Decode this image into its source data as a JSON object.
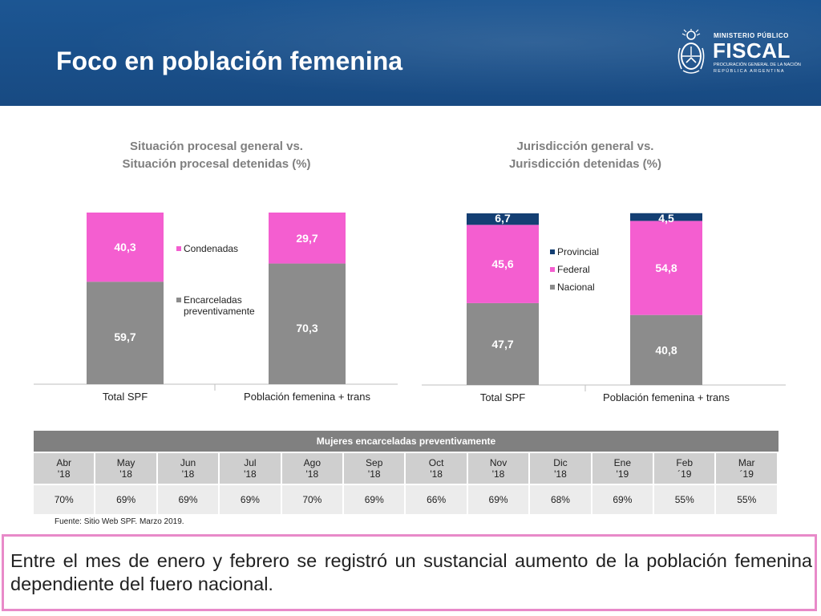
{
  "header": {
    "title": "Foco en población femenina",
    "logo": {
      "line1": "MINISTERIO PÚBLICO",
      "line2": "FISCAL",
      "line3": "PROCURACIÓN GENERAL DE LA NACIÓN",
      "line4": "REPÚBLICA ARGENTINA"
    },
    "colors": {
      "bg": "#1c5693",
      "text": "#ffffff"
    }
  },
  "chart_data": [
    {
      "type": "bar",
      "stacked": true,
      "title": "Situación procesal general  vs. Situación procesal detenidas (%)",
      "title_lines": [
        "Situación procesal general  vs.",
        "Situación procesal detenidas (%)"
      ],
      "categories": [
        "Total SPF",
        "Población femenina + trans"
      ],
      "series": [
        {
          "name": "Encarceladas preventivamente",
          "legend_lines": [
            "Encarceladas",
            "preventivamente"
          ],
          "values": [
            59.7,
            70.3
          ],
          "labels": [
            "59,7",
            "70,3"
          ],
          "color": "#8c8c8c"
        },
        {
          "name": "Condenadas",
          "legend_lines": [
            "Condenadas"
          ],
          "values": [
            40.3,
            29.7
          ],
          "labels": [
            "40,3",
            "29,7"
          ],
          "color": "#f45ed0"
        }
      ],
      "legend_order": [
        1,
        0
      ],
      "legend_position": "center",
      "ylim": [
        0,
        100
      ],
      "grid": false
    },
    {
      "type": "bar",
      "stacked": true,
      "title": "Jurisdicción general vs. Jurisdicción detenidas (%)",
      "title_lines": [
        "Jurisdicción general vs.",
        "Jurisdicción detenidas (%)"
      ],
      "categories": [
        "Total SPF",
        "Población femenina + trans"
      ],
      "series": [
        {
          "name": "Nacional",
          "legend_lines": [
            "Nacional"
          ],
          "values": [
            47.7,
            40.8
          ],
          "labels": [
            "47,7",
            "40,8"
          ],
          "color": "#8c8c8c"
        },
        {
          "name": "Federal",
          "legend_lines": [
            "Federal"
          ],
          "values": [
            45.6,
            54.8
          ],
          "labels": [
            "45,6",
            "54,8"
          ],
          "color": "#f45ed0"
        },
        {
          "name": "Provincial",
          "legend_lines": [
            "Provincial"
          ],
          "values": [
            6.7,
            4.5
          ],
          "labels": [
            "6,7",
            "4,5"
          ],
          "color": "#143f73"
        }
      ],
      "legend_order": [
        2,
        1,
        0
      ],
      "legend_position": "center",
      "ylim": [
        0,
        100
      ],
      "grid": false
    }
  ],
  "table": {
    "caption": "Mujeres encarceladas preventivamente",
    "months": [
      {
        "m": "Abr",
        "y": "'18"
      },
      {
        "m": "May",
        "y": "'18"
      },
      {
        "m": "Jun",
        "y": "'18"
      },
      {
        "m": "Jul",
        "y": "'18"
      },
      {
        "m": "Ago",
        "y": "'18"
      },
      {
        "m": "Sep",
        "y": "'18"
      },
      {
        "m": "Oct",
        "y": "'18"
      },
      {
        "m": "Nov",
        "y": "'18"
      },
      {
        "m": "Dic",
        "y": "'18"
      },
      {
        "m": "Ene",
        "y": "'19"
      },
      {
        "m": "Feb",
        "y": "´19"
      },
      {
        "m": "Mar",
        "y": "´19"
      }
    ],
    "values": [
      "70%",
      "69%",
      "69%",
      "69%",
      "70%",
      "69%",
      "66%",
      "69%",
      "68%",
      "69%",
      "55%",
      "55%"
    ]
  },
  "source": "Fuente: Sitio Web SPF. Marzo 2019.",
  "note": {
    "text": "Entre el mes de enero y febrero se registró un sustancial aumento de la población femenina dependiente del fuero nacional.",
    "border_color": "#e88ac9"
  }
}
